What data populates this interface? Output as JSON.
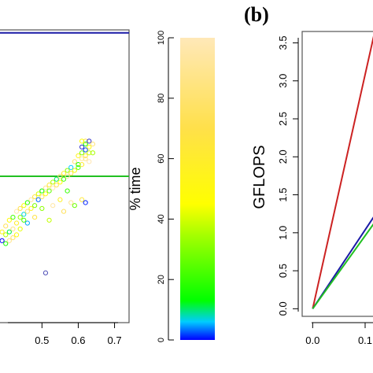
{
  "colors": {
    "blue_line": "#1a1aa6",
    "green_line": "#22c022",
    "red_line": "#cc2222",
    "frame": "#555555",
    "outlier_point": "#4b4bb5"
  },
  "chart_data": [
    {
      "type": "scatter",
      "panel": "left (cropped)",
      "x_ticks": [
        "0.5",
        "0.6",
        "0.7"
      ],
      "xlim": [
        0.38,
        0.74
      ],
      "ylim": [
        0,
        100
      ],
      "reference_lines": [
        {
          "name": "",
          "y": 99,
          "color": "blue"
        },
        {
          "name": "",
          "y": 50,
          "color": "green"
        }
      ],
      "point_color_encoding": "% time (color bar)",
      "points": [
        {
          "x": 0.39,
          "y": 28
        },
        {
          "x": 0.4,
          "y": 30
        },
        {
          "x": 0.4,
          "y": 33
        },
        {
          "x": 0.41,
          "y": 31
        },
        {
          "x": 0.41,
          "y": 35
        },
        {
          "x": 0.42,
          "y": 32
        },
        {
          "x": 0.42,
          "y": 36
        },
        {
          "x": 0.43,
          "y": 34
        },
        {
          "x": 0.43,
          "y": 38
        },
        {
          "x": 0.44,
          "y": 36
        },
        {
          "x": 0.44,
          "y": 39
        },
        {
          "x": 0.45,
          "y": 37
        },
        {
          "x": 0.45,
          "y": 40
        },
        {
          "x": 0.46,
          "y": 38
        },
        {
          "x": 0.46,
          "y": 41
        },
        {
          "x": 0.47,
          "y": 39
        },
        {
          "x": 0.47,
          "y": 42
        },
        {
          "x": 0.48,
          "y": 40
        },
        {
          "x": 0.48,
          "y": 43
        },
        {
          "x": 0.49,
          "y": 42
        },
        {
          "x": 0.49,
          "y": 44
        },
        {
          "x": 0.5,
          "y": 43
        },
        {
          "x": 0.5,
          "y": 45
        },
        {
          "x": 0.51,
          "y": 44
        },
        {
          "x": 0.51,
          "y": 46
        },
        {
          "x": 0.52,
          "y": 45
        },
        {
          "x": 0.52,
          "y": 47
        },
        {
          "x": 0.53,
          "y": 46
        },
        {
          "x": 0.53,
          "y": 48
        },
        {
          "x": 0.54,
          "y": 47
        },
        {
          "x": 0.54,
          "y": 49
        },
        {
          "x": 0.55,
          "y": 48
        },
        {
          "x": 0.55,
          "y": 50
        },
        {
          "x": 0.56,
          "y": 49
        },
        {
          "x": 0.56,
          "y": 51
        },
        {
          "x": 0.57,
          "y": 50
        },
        {
          "x": 0.57,
          "y": 52
        },
        {
          "x": 0.58,
          "y": 51
        },
        {
          "x": 0.58,
          "y": 53
        },
        {
          "x": 0.59,
          "y": 52
        },
        {
          "x": 0.59,
          "y": 55
        },
        {
          "x": 0.6,
          "y": 54
        },
        {
          "x": 0.6,
          "y": 57
        },
        {
          "x": 0.61,
          "y": 56
        },
        {
          "x": 0.61,
          "y": 58
        },
        {
          "x": 0.62,
          "y": 57
        },
        {
          "x": 0.62,
          "y": 59
        },
        {
          "x": 0.63,
          "y": 58
        },
        {
          "x": 0.61,
          "y": 60
        },
        {
          "x": 0.62,
          "y": 61
        },
        {
          "x": 0.63,
          "y": 60
        },
        {
          "x": 0.62,
          "y": 56
        },
        {
          "x": 0.6,
          "y": 53
        },
        {
          "x": 0.61,
          "y": 54
        },
        {
          "x": 0.63,
          "y": 55
        },
        {
          "x": 0.64,
          "y": 58
        },
        {
          "x": 0.62,
          "y": 62
        },
        {
          "x": 0.63,
          "y": 62
        },
        {
          "x": 0.61,
          "y": 62
        },
        {
          "x": 0.64,
          "y": 61
        },
        {
          "x": 0.57,
          "y": 45
        },
        {
          "x": 0.55,
          "y": 42
        },
        {
          "x": 0.53,
          "y": 40
        },
        {
          "x": 0.5,
          "y": 39
        },
        {
          "x": 0.48,
          "y": 36
        },
        {
          "x": 0.46,
          "y": 34
        },
        {
          "x": 0.44,
          "y": 32
        },
        {
          "x": 0.42,
          "y": 29
        },
        {
          "x": 0.4,
          "y": 27
        },
        {
          "x": 0.39,
          "y": 31
        },
        {
          "x": 0.58,
          "y": 41
        },
        {
          "x": 0.59,
          "y": 40
        },
        {
          "x": 0.61,
          "y": 42
        },
        {
          "x": 0.62,
          "y": 41
        },
        {
          "x": 0.52,
          "y": 35
        },
        {
          "x": 0.56,
          "y": 38
        },
        {
          "x": 0.51,
          "y": 17
        },
        {
          "x": 0.43,
          "y": 30
        },
        {
          "x": 0.41,
          "y": 28
        },
        {
          "x": 0.45,
          "y": 35
        }
      ]
    },
    {
      "type": "colorbar",
      "label": "% time",
      "ticks": [
        "0",
        "20",
        "40",
        "60",
        "80",
        "100"
      ],
      "range": [
        0,
        100
      ],
      "stops": [
        {
          "at": 0,
          "color": "#0000ff"
        },
        {
          "at": 6,
          "color": "#00ccff"
        },
        {
          "at": 13,
          "color": "#00ff00"
        },
        {
          "at": 35,
          "color": "#a8ff00"
        },
        {
          "at": 45,
          "color": "#ffff00"
        },
        {
          "at": 70,
          "color": "#ffe04a"
        },
        {
          "at": 100,
          "color": "#ffe8b8"
        }
      ]
    },
    {
      "type": "line",
      "panel_label": "(b)",
      "ylabel": "GFLOPS",
      "y_ticks": [
        "0.0",
        "0.5",
        "1.0",
        "1.5",
        "2.0",
        "2.5",
        "3.0",
        "3.5"
      ],
      "x_ticks": [
        "0.0",
        "0.1"
      ],
      "xlim": [
        -0.02,
        0.13
      ],
      "ylim": [
        -0.1,
        3.65
      ],
      "series": [
        {
          "name": "",
          "color": "red",
          "x": [
            0.0,
            0.12
          ],
          "y": [
            0.0,
            3.7
          ]
        },
        {
          "name": "",
          "color": "blue",
          "x": [
            0.0,
            0.13
          ],
          "y": [
            0.0,
            1.35
          ]
        },
        {
          "name": "",
          "color": "green",
          "x": [
            0.0,
            0.13
          ],
          "y": [
            0.0,
            1.25
          ]
        }
      ]
    }
  ]
}
